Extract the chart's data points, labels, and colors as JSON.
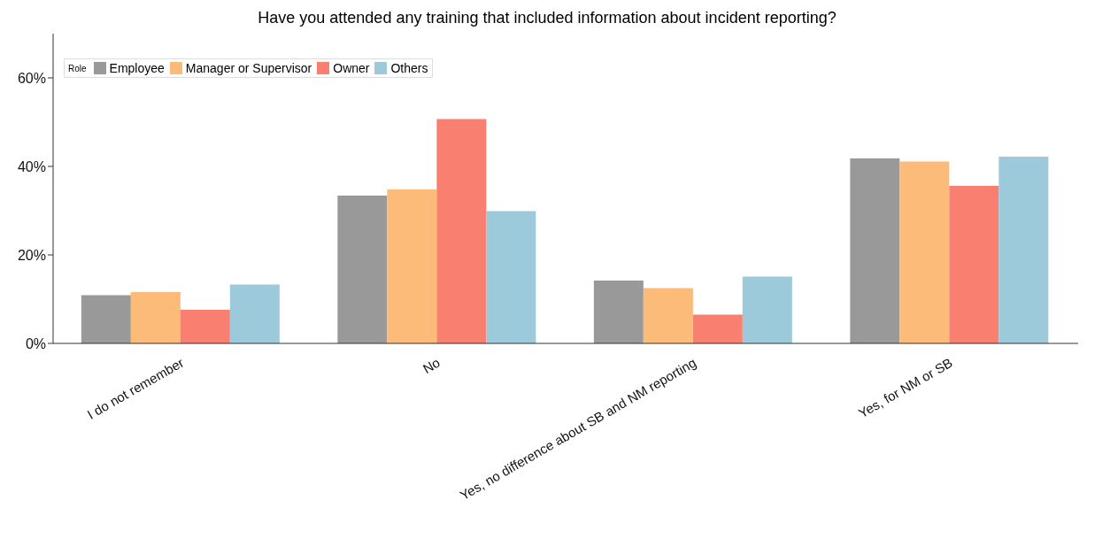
{
  "chart_data": {
    "type": "bar",
    "title": "Have you attended any training that included information about incident reporting?",
    "legend_title": "Role",
    "categories": [
      "I do not remember",
      "No",
      "Yes, no difference about SB and NM reporting",
      "Yes, for NM or SB"
    ],
    "series": [
      {
        "name": "Employee",
        "color": "#999999",
        "values": [
          10.9,
          33.4,
          14.2,
          41.8
        ]
      },
      {
        "name": "Manager or Supervisor",
        "color": "#fdbb7a",
        "values": [
          11.6,
          34.8,
          12.5,
          41.1
        ]
      },
      {
        "name": "Owner",
        "color": "#f98070",
        "values": [
          7.6,
          50.7,
          6.5,
          35.6
        ]
      },
      {
        "name": "Others",
        "color": "#9ccadb",
        "values": [
          13.3,
          29.9,
          15.1,
          42.2
        ]
      }
    ],
    "ylim": [
      0,
      70
    ],
    "yticks": [
      {
        "value": 0,
        "label": "0%"
      },
      {
        "value": 20,
        "label": "20%"
      },
      {
        "value": 40,
        "label": "40%"
      },
      {
        "value": 60,
        "label": "60%"
      }
    ],
    "grid": false,
    "legend": "top left"
  }
}
